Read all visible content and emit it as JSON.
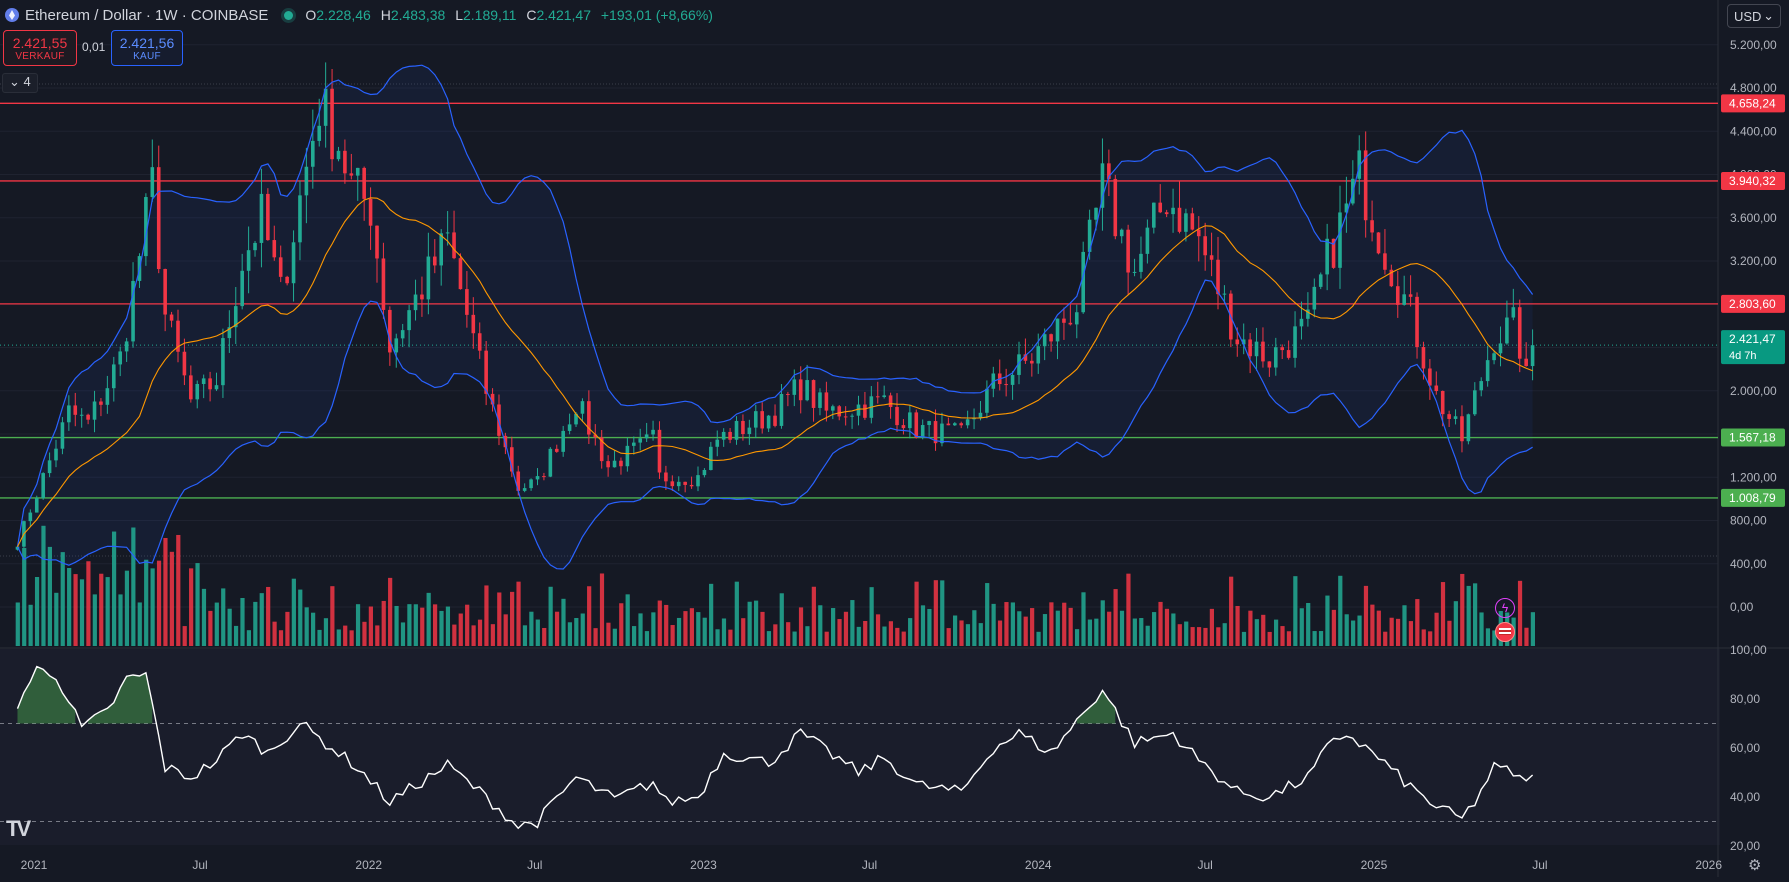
{
  "header": {
    "title": "Ethereum / Dollar · 1W · COINBASE",
    "ohlc": [
      {
        "k": "O",
        "v": "2.228,46"
      },
      {
        "k": "H",
        "v": "2.483,38"
      },
      {
        "k": "L",
        "v": "2.189,11"
      },
      {
        "k": "C",
        "v": "2.421,47"
      }
    ],
    "change": "+193,01 (+8,66%)",
    "sell_price": "2.421,55",
    "sell_label": "VERKAUF",
    "spread": "0,01",
    "buy_price": "2.421,56",
    "buy_label": "KAUF",
    "legend_toggle": "4"
  },
  "currency": {
    "label": "USD"
  },
  "colors": {
    "up": "#22ab94",
    "down": "#f23645",
    "bollinger": "#2962ff",
    "basis": "#ff9800",
    "resistance": "#f23645",
    "support": "#4caf50",
    "rsi": "#ffffff"
  },
  "icons": [
    "ethereum-logo-icon",
    "live-dot-icon",
    "chevron-down-icon",
    "tradingview-logo-icon",
    "settings-gear-icon",
    "lightning-icon",
    "us-flag-icon"
  ],
  "chart_data": [
    {
      "type": "candlestick",
      "name": "ETHUSD weekly",
      "x_tick_labels": [
        "2021",
        "Jul",
        "2022",
        "Jul",
        "2023",
        "Jul",
        "2024",
        "Jul",
        "2025",
        "Jul",
        "2026"
      ],
      "y_tick_labels": [
        "5.200,00",
        "4.800,00",
        "4.400,00",
        "4.000,00",
        "3.600,00",
        "3.200,00",
        "2.800,00",
        "2.400,00",
        "2.000,00",
        "1.600,00",
        "1.200,00",
        "800,00",
        "400,00",
        "0,00"
      ],
      "y_ticks": [
        5200,
        4800,
        4400,
        4000,
        3600,
        3200,
        2800,
        2400,
        2000,
        1600,
        1200,
        800,
        400,
        0
      ],
      "ylim": [
        -380,
        5460
      ],
      "horizontal_levels": [
        {
          "value": 4658.24,
          "label": "4.658,24",
          "kind": "resistance"
        },
        {
          "value": 3940.32,
          "label": "3.940,32",
          "kind": "resistance"
        },
        {
          "value": 2803.6,
          "label": "2.803,60",
          "kind": "resistance"
        },
        {
          "value": 1567.18,
          "label": "1.567,18",
          "kind": "support"
        },
        {
          "value": 1008.79,
          "label": "1.008,79",
          "kind": "support"
        }
      ],
      "last_price": {
        "value": 2421.47,
        "label": "2.421,47",
        "countdown": "4d 7h"
      },
      "anchors": [
        [
          "2020-12-14",
          600
        ],
        [
          "2021-01-11",
          1200
        ],
        [
          "2021-02-08",
          1800
        ],
        [
          "2021-03-01",
          1700
        ],
        [
          "2021-04-05",
          2300
        ],
        [
          "2021-05-10",
          3900
        ],
        [
          "2021-05-24",
          2700
        ],
        [
          "2021-06-21",
          1900
        ],
        [
          "2021-07-19",
          2100
        ],
        [
          "2021-08-16",
          3200
        ],
        [
          "2021-09-06",
          3600
        ],
        [
          "2021-09-27",
          2900
        ],
        [
          "2021-11-08",
          4650
        ],
        [
          "2021-11-29",
          4300
        ],
        [
          "2021-12-13",
          3900
        ],
        [
          "2022-01-03",
          3700
        ],
        [
          "2022-01-24",
          2400
        ],
        [
          "2022-03-28",
          3400
        ],
        [
          "2022-05-09",
          2000
        ],
        [
          "2022-06-13",
          1100
        ],
        [
          "2022-07-04",
          1150
        ],
        [
          "2022-08-15",
          1900
        ],
        [
          "2022-09-19",
          1300
        ],
        [
          "2022-11-07",
          1550
        ],
        [
          "2022-11-14",
          1200
        ],
        [
          "2022-12-26",
          1200
        ],
        [
          "2023-01-16",
          1550
        ],
        [
          "2023-03-20",
          1800
        ],
        [
          "2023-04-17",
          2050
        ],
        [
          "2023-05-15",
          1800
        ],
        [
          "2023-07-17",
          1900
        ],
        [
          "2023-08-21",
          1650
        ],
        [
          "2023-10-09",
          1580
        ],
        [
          "2023-11-13",
          2050
        ],
        [
          "2023-12-25",
          2300
        ],
        [
          "2024-02-12",
          2800
        ],
        [
          "2024-03-11",
          3900
        ],
        [
          "2024-04-15",
          3100
        ],
        [
          "2024-05-20",
          3800
        ],
        [
          "2024-06-24",
          3400
        ],
        [
          "2024-08-05",
          2500
        ],
        [
          "2024-09-09",
          2300
        ],
        [
          "2024-10-21",
          2600
        ],
        [
          "2024-11-11",
          3200
        ],
        [
          "2024-12-16",
          4000
        ],
        [
          "2025-01-13",
          3300
        ],
        [
          "2025-02-10",
          2700
        ],
        [
          "2025-03-10",
          1950
        ],
        [
          "2025-04-07",
          1550
        ],
        [
          "2025-05-12",
          2500
        ],
        [
          "2025-06-02",
          2600
        ],
        [
          "2025-06-16",
          2228
        ],
        [
          "2025-06-23",
          2421
        ]
      ]
    },
    {
      "type": "line",
      "name": "RSI",
      "y_tick_labels": [
        "100,00",
        "80,00",
        "60,00",
        "40,00",
        "20,00"
      ],
      "y_ticks": [
        100,
        80,
        60,
        40,
        20
      ],
      "ylim": [
        20,
        100
      ],
      "bands": [
        70,
        30
      ],
      "anchors": [
        [
          "2020-12-14",
          78
        ],
        [
          "2021-01-04",
          92
        ],
        [
          "2021-01-25",
          90
        ],
        [
          "2021-02-22",
          68
        ],
        [
          "2021-03-22",
          75
        ],
        [
          "2021-04-12",
          88
        ],
        [
          "2021-05-03",
          90
        ],
        [
          "2021-05-24",
          52
        ],
        [
          "2021-06-21",
          48
        ],
        [
          "2021-07-19",
          55
        ],
        [
          "2021-08-16",
          66
        ],
        [
          "2021-09-13",
          58
        ],
        [
          "2021-10-18",
          70
        ],
        [
          "2021-11-15",
          62
        ],
        [
          "2021-12-20",
          52
        ],
        [
          "2022-01-24",
          38
        ],
        [
          "2022-03-28",
          53
        ],
        [
          "2022-05-09",
          40
        ],
        [
          "2022-06-13",
          28
        ],
        [
          "2022-07-04",
          30
        ],
        [
          "2022-08-15",
          48
        ],
        [
          "2022-09-26",
          39
        ],
        [
          "2022-11-07",
          46
        ],
        [
          "2022-11-21",
          38
        ],
        [
          "2022-12-26",
          40
        ],
        [
          "2023-01-23",
          58
        ],
        [
          "2023-03-13",
          54
        ],
        [
          "2023-04-17",
          66
        ],
        [
          "2023-06-19",
          50
        ],
        [
          "2023-07-17",
          56
        ],
        [
          "2023-08-21",
          45
        ],
        [
          "2023-10-09",
          42
        ],
        [
          "2023-11-13",
          60
        ],
        [
          "2023-12-11",
          66
        ],
        [
          "2024-01-15",
          58
        ],
        [
          "2024-03-11",
          84
        ],
        [
          "2024-04-15",
          62
        ],
        [
          "2024-05-27",
          66
        ],
        [
          "2024-06-24",
          55
        ],
        [
          "2024-08-05",
          42
        ],
        [
          "2024-09-09",
          40
        ],
        [
          "2024-10-21",
          48
        ],
        [
          "2024-11-11",
          60
        ],
        [
          "2024-12-02",
          66
        ],
        [
          "2025-01-06",
          56
        ],
        [
          "2025-02-10",
          44
        ],
        [
          "2025-03-10",
          36
        ],
        [
          "2025-04-07",
          31
        ],
        [
          "2025-04-21",
          38
        ],
        [
          "2025-05-12",
          52
        ],
        [
          "2025-06-02",
          50
        ],
        [
          "2025-06-16",
          45
        ],
        [
          "2025-06-23",
          49
        ]
      ]
    }
  ]
}
